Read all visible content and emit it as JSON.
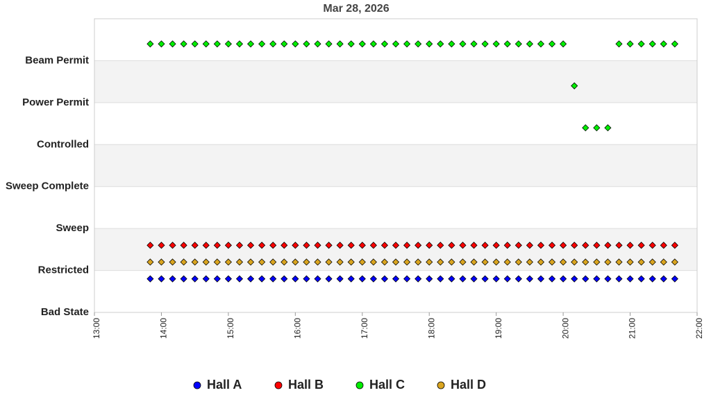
{
  "chart_data": {
    "type": "scatter",
    "title": "Mar 28, 2026",
    "x": [
      "13:50",
      "14:00",
      "14:10",
      "14:20",
      "14:30",
      "14:40",
      "14:50",
      "15:00",
      "15:10",
      "15:20",
      "15:30",
      "15:40",
      "15:50",
      "16:00",
      "16:10",
      "16:20",
      "16:30",
      "16:40",
      "16:50",
      "17:00",
      "17:10",
      "17:20",
      "17:30",
      "17:40",
      "17:50",
      "18:00",
      "18:10",
      "18:20",
      "18:30",
      "18:40",
      "18:50",
      "19:00",
      "19:10",
      "19:20",
      "19:30",
      "19:40",
      "19:50",
      "20:00",
      "20:10",
      "20:20",
      "20:30",
      "20:40",
      "20:50",
      "21:00",
      "21:10",
      "21:20",
      "21:30",
      "21:40"
    ],
    "series": [
      {
        "name": "Hall A",
        "color": "#0000ff",
        "values": [
          0.8,
          0.8,
          0.8,
          0.8,
          0.8,
          0.8,
          0.8,
          0.8,
          0.8,
          0.8,
          0.8,
          0.8,
          0.8,
          0.8,
          0.8,
          0.8,
          0.8,
          0.8,
          0.8,
          0.8,
          0.8,
          0.8,
          0.8,
          0.8,
          0.8,
          0.8,
          0.8,
          0.8,
          0.8,
          0.8,
          0.8,
          0.8,
          0.8,
          0.8,
          0.8,
          0.8,
          0.8,
          0.8,
          0.8,
          0.8,
          0.8,
          0.8,
          0.8,
          0.8,
          0.8,
          0.8,
          0.8,
          0.8
        ]
      },
      {
        "name": "Hall B",
        "color": "#ff0000",
        "values": [
          1.6,
          1.6,
          1.6,
          1.6,
          1.6,
          1.6,
          1.6,
          1.6,
          1.6,
          1.6,
          1.6,
          1.6,
          1.6,
          1.6,
          1.6,
          1.6,
          1.6,
          1.6,
          1.6,
          1.6,
          1.6,
          1.6,
          1.6,
          1.6,
          1.6,
          1.6,
          1.6,
          1.6,
          1.6,
          1.6,
          1.6,
          1.6,
          1.6,
          1.6,
          1.6,
          1.6,
          1.6,
          1.6,
          1.6,
          1.6,
          1.6,
          1.6,
          1.6,
          1.6,
          1.6,
          1.6,
          1.6,
          1.6
        ]
      },
      {
        "name": "Hall C",
        "color": "#00ee00",
        "values": [
          6.4,
          6.4,
          6.4,
          6.4,
          6.4,
          6.4,
          6.4,
          6.4,
          6.4,
          6.4,
          6.4,
          6.4,
          6.4,
          6.4,
          6.4,
          6.4,
          6.4,
          6.4,
          6.4,
          6.4,
          6.4,
          6.4,
          6.4,
          6.4,
          6.4,
          6.4,
          6.4,
          6.4,
          6.4,
          6.4,
          6.4,
          6.4,
          6.4,
          6.4,
          6.4,
          6.4,
          6.4,
          6.4,
          5.4,
          4.4,
          4.4,
          4.4,
          6.4,
          6.4,
          6.4,
          6.4,
          6.4,
          6.4
        ]
      },
      {
        "name": "Hall D",
        "color": "#daa520",
        "values": [
          1.2,
          1.2,
          1.2,
          1.2,
          1.2,
          1.2,
          1.2,
          1.2,
          1.2,
          1.2,
          1.2,
          1.2,
          1.2,
          1.2,
          1.2,
          1.2,
          1.2,
          1.2,
          1.2,
          1.2,
          1.2,
          1.2,
          1.2,
          1.2,
          1.2,
          1.2,
          1.2,
          1.2,
          1.2,
          1.2,
          1.2,
          1.2,
          1.2,
          1.2,
          1.2,
          1.2,
          1.2,
          1.2,
          1.2,
          1.2,
          1.2,
          1.2,
          1.2,
          1.2,
          1.2,
          1.2,
          1.2,
          1.2
        ]
      }
    ],
    "xlim": [
      "13:00",
      "22:00"
    ],
    "xticks": [
      "13:00",
      "14:00",
      "15:00",
      "16:00",
      "17:00",
      "18:00",
      "19:00",
      "20:00",
      "21:00",
      "22:00"
    ],
    "ylim": [
      0,
      7
    ],
    "yticks": [
      {
        "value": 0,
        "label": "Bad State"
      },
      {
        "value": 1,
        "label": "Restricted"
      },
      {
        "value": 2,
        "label": "Sweep"
      },
      {
        "value": 3,
        "label": "Sweep Complete"
      },
      {
        "value": 4,
        "label": "Controlled"
      },
      {
        "value": 5,
        "label": "Power Permit"
      },
      {
        "value": 6,
        "label": "Beam Permit"
      }
    ],
    "grid": true,
    "band_color": "#f3f3f3",
    "legend": "bottom"
  }
}
